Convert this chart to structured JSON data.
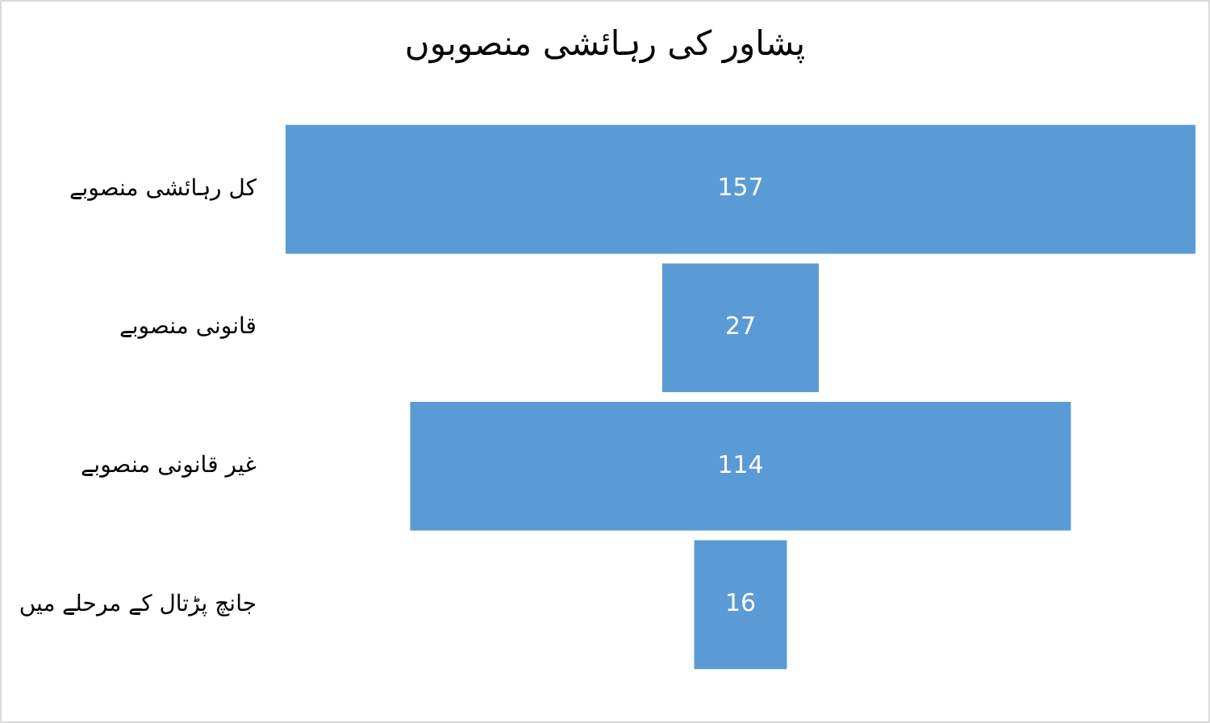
{
  "chart_data": {
    "type": "other",
    "title": "پشاور کی رہائشی منصوبوں",
    "categories": [
      "کل رہائشی منصوبے",
      "قانونی منصوبے",
      "غیر قانونی منصوبے",
      "جانچ پڑتال کے مرحلے میں"
    ],
    "values": [
      157,
      27,
      114,
      16
    ],
    "color": "#5b9bd5",
    "data_labels": true
  }
}
